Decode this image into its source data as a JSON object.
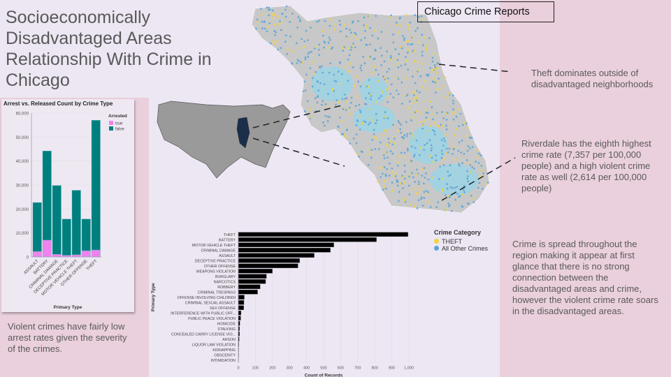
{
  "title": "Socioeconomically Disadvantaged Areas Relationship With Crime in Chicago",
  "map": {
    "title": "Chicago Crime Reports",
    "legend_title": "Crime Category",
    "legend": [
      {
        "label": "THEFT",
        "color": "#f2d43a"
      },
      {
        "label": "All Other Crimes",
        "color": "#5aa6d6"
      }
    ],
    "disadvantaged_area_color": "#9fd3e3",
    "base_color": "#c8c8c8",
    "highlight_state": "Illinois",
    "highlight_color": "#1b2e4a"
  },
  "notes": {
    "arrests": "Violent crimes have fairly low arrest rates given the severity of the crimes.",
    "theft": "Theft dominates outside of disadvantaged neighborhoods",
    "riverdale": "Riverdale has the eighth highest crime rate (7,357 per 100,000 people) and a high violent crime rate as well (2,614 per 100,000 people)",
    "spread": "Crime is spread throughout the region making it appear at first glance that there is no strong connection between the disadvantaged areas and crime, however the violent crime rate soars in the disadvantaged areas."
  },
  "chart_data": [
    {
      "type": "bar",
      "stacked": true,
      "title": "Arrest vs. Released Count by Crime Type",
      "xlabel": "Primary Type",
      "ylabel": "",
      "ylim": [
        0,
        60000
      ],
      "yticks": [
        "0",
        "10,000",
        "20,000",
        "30,000",
        "40,000",
        "50,000",
        "60,000"
      ],
      "legend_title": "Arrested",
      "legend_placement": "top-right",
      "categories": [
        "ASSAULT",
        "BATTERY",
        "CRIMINAL DAMAGE",
        "DECEPTIVE PRACTICE",
        "MOTOR VEHICLE THEFT",
        "OTHER OFFENSE",
        "THEFT"
      ],
      "series": [
        {
          "name": "true",
          "color": "#ee82ee",
          "values": [
            2300,
            7000,
            1100,
            700,
            900,
            2600,
            2900
          ]
        },
        {
          "name": "false",
          "color": "#007f7f",
          "values": [
            20400,
            37200,
            28700,
            15100,
            26900,
            13200,
            54100
          ]
        }
      ]
    },
    {
      "type": "bar",
      "orientation": "horizontal",
      "xlabel": "Count of Records",
      "ylabel": "Primary Type",
      "xlim": [
        0,
        1000
      ],
      "xticks": [
        "0",
        "100",
        "200",
        "300",
        "400",
        "500",
        "600",
        "700",
        "800",
        "900",
        "1,000"
      ],
      "color": "#000000",
      "grid": true,
      "categories": [
        "THEFT",
        "BATTERY",
        "MOTOR VEHICLE THEFT",
        "CRIMINAL DAMAGE",
        "ASSAULT",
        "DECEPTIVE PRACTICE",
        "OTHER OFFENSE",
        "WEAPONS VIOLATION",
        "BURGLARY",
        "NARCOTICS",
        "ROBBERY",
        "CRIMINAL TRESPASS",
        "OFFENSE INVOLVING CHILDREN",
        "CRIMINAL SEXUAL ASSAULT",
        "SEX OFFENSE",
        "INTERFERENCE WITH PUBLIC OFF...",
        "PUBLIC PEACE VIOLATION",
        "HOMICIDE",
        "STALKING",
        "CONCEALED CARRY LICENSE VIO...",
        "ARSON",
        "LIQUOR LAW VIOLATION",
        "KIDNAPPING",
        "OBSCENITY",
        "INTIMIDATION"
      ],
      "values": [
        995,
        810,
        560,
        540,
        445,
        360,
        350,
        200,
        165,
        160,
        128,
        113,
        35,
        33,
        32,
        16,
        14,
        9,
        7,
        7,
        5,
        3,
        2,
        2,
        1
      ]
    }
  ]
}
